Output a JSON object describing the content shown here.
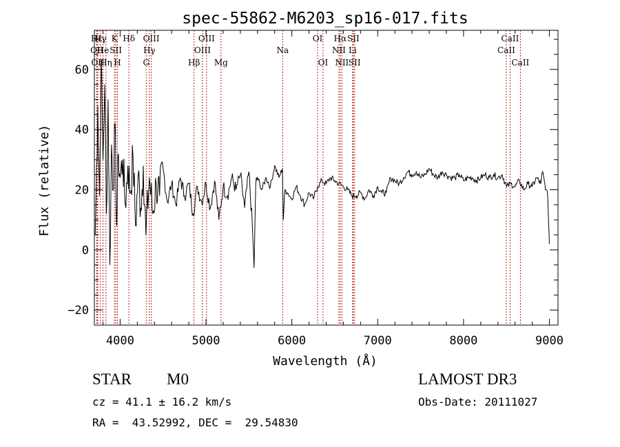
{
  "chart_data": {
    "type": "line",
    "title": "spec-55862-M6203_sp16-017.fits",
    "xlabel": "Wavelength (Å)",
    "ylabel": "Flux (relative)",
    "xlim": [
      3700,
      9100
    ],
    "ylim": [
      -25,
      73
    ],
    "x_ticks": [
      4000,
      5000,
      6000,
      7000,
      8000,
      9000
    ],
    "x_minor_step": 200,
    "y_ticks": [
      -20,
      0,
      20,
      40,
      60
    ],
    "y_minor_step": 5,
    "grid": false,
    "line_color": "#000000",
    "marker_color": "#b22222",
    "series": [
      {
        "name": "flux",
        "x": [
          3710,
          3740,
          3760,
          3780,
          3800,
          3820,
          3840,
          3860,
          3880,
          3900,
          3920,
          3940,
          3960,
          3980,
          4000,
          4030,
          4060,
          4090,
          4120,
          4150,
          4180,
          4210,
          4240,
          4270,
          4300,
          4340,
          4380,
          4420,
          4460,
          4500,
          4550,
          4600,
          4650,
          4700,
          4750,
          4800,
          4850,
          4900,
          4950,
          5000,
          5050,
          5100,
          5150,
          5200,
          5250,
          5300,
          5350,
          5400,
          5450,
          5500,
          5540,
          5560,
          5580,
          5600,
          5650,
          5700,
          5750,
          5800,
          5850,
          5890,
          5900,
          5920,
          5950,
          6000,
          6050,
          6100,
          6150,
          6200,
          6250,
          6300,
          6350,
          6400,
          6450,
          6500,
          6550,
          6600,
          6650,
          6700,
          6750,
          6800,
          6850,
          6900,
          6950,
          7000,
          7050,
          7100,
          7150,
          7200,
          7250,
          7300,
          7350,
          7400,
          7450,
          7500,
          7550,
          7600,
          7650,
          7700,
          7750,
          7800,
          7850,
          7900,
          7950,
          8000,
          8050,
          8100,
          8150,
          8200,
          8250,
          8300,
          8350,
          8400,
          8450,
          8500,
          8550,
          8600,
          8650,
          8700,
          8750,
          8800,
          8850,
          8900,
          8920,
          8940,
          8960,
          8980,
          9000
        ],
        "y": [
          5,
          48,
          18,
          63,
          30,
          55,
          12,
          50,
          -5,
          35,
          20,
          42,
          8,
          32,
          24,
          30,
          15,
          28,
          19,
          31,
          8,
          25,
          14,
          28,
          5,
          24,
          12,
          22,
          18,
          27,
          16,
          22,
          15,
          24,
          18,
          22,
          12,
          21,
          16,
          22,
          14,
          23,
          10,
          21,
          18,
          24,
          20,
          25,
          14,
          26,
          8,
          -6,
          22,
          24,
          20,
          24,
          21,
          28,
          24,
          27,
          10,
          20,
          19,
          17,
          21,
          18,
          15,
          19,
          17,
          21,
          23,
          22,
          24,
          23,
          22,
          21,
          20,
          18,
          18,
          19,
          17,
          20,
          18,
          21,
          19,
          19,
          24,
          23,
          22,
          24,
          26,
          25,
          26,
          24,
          25,
          27,
          25,
          24,
          26,
          25,
          24,
          24,
          25,
          23,
          24,
          24,
          23,
          24,
          25,
          24,
          25,
          24,
          25,
          21,
          22,
          21,
          23,
          20,
          22,
          21,
          24,
          22,
          26,
          23,
          20,
          18,
          2
        ]
      }
    ],
    "lines": [
      {
        "label": "Hε",
        "x": 3727,
        "row": 1
      },
      {
        "label": "OII",
        "x": 3730,
        "row": 2
      },
      {
        "label": "OII",
        "x": 3740,
        "row": 3
      },
      {
        "label": "Hγ",
        "x": 3770,
        "row": 1
      },
      {
        "label": "He",
        "x": 3800,
        "row": 2
      },
      {
        "label": "Hη",
        "x": 3835,
        "row": 3
      },
      {
        "label": "K",
        "x": 3934,
        "row": 1
      },
      {
        "label": "SII",
        "x": 3950,
        "row": 2
      },
      {
        "label": "H",
        "x": 3969,
        "row": 3
      },
      {
        "label": "Hδ",
        "x": 4102,
        "row": 1
      },
      {
        "label": "OIII",
        "x": 4363,
        "row": 1
      },
      {
        "label": "Hγ",
        "x": 4340,
        "row": 2
      },
      {
        "label": "G",
        "x": 4304,
        "row": 3
      },
      {
        "label": "Hβ",
        "x": 4861,
        "row": 3
      },
      {
        "label": "OIII",
        "x": 5007,
        "row": 1
      },
      {
        "label": "OIII",
        "x": 4959,
        "row": 2
      },
      {
        "label": "Mg",
        "x": 5175,
        "row": 3
      },
      {
        "label": "Na",
        "x": 5893,
        "row": 2
      },
      {
        "label": "OI",
        "x": 6300,
        "row": 1
      },
      {
        "label": "OI",
        "x": 6363,
        "row": 3
      },
      {
        "label": "Hα",
        "x": 6563,
        "row": 1
      },
      {
        "label": "NII",
        "x": 6548,
        "row": 2
      },
      {
        "label": "NII",
        "x": 6583,
        "row": 3
      },
      {
        "label": "SII",
        "x": 6716,
        "row": 1
      },
      {
        "label": "Li",
        "x": 6708,
        "row": 2
      },
      {
        "label": "SII",
        "x": 6731,
        "row": 3
      },
      {
        "label": "CaII",
        "x": 8542,
        "row": 1
      },
      {
        "label": "CaII",
        "x": 8498,
        "row": 2
      },
      {
        "label": "CaII",
        "x": 8662,
        "row": 3
      }
    ]
  },
  "info": {
    "object_class": "STAR",
    "subclass": "M0",
    "redshift_text": "cz = 41.1 ± 16.2 km/s",
    "coords_text": "RA =  43.52992, DEC =  29.54830",
    "survey": "LAMOST DR3",
    "obs_date_text": "Obs-Date: 20111027"
  }
}
